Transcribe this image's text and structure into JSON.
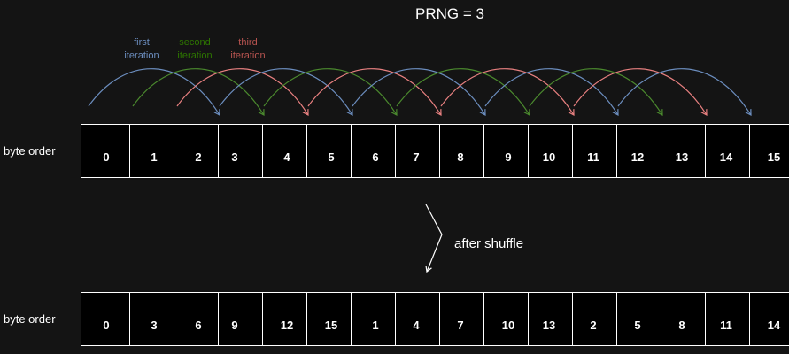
{
  "title": "PRNG = 3",
  "legend": [
    {
      "line1": "first",
      "line2": "iteration",
      "color": "#6c8ebf"
    },
    {
      "line1": "second",
      "line2": "iteration",
      "color": "#2d7600"
    },
    {
      "line1": "third",
      "line2": "iteration",
      "color": "#b85450"
    }
  ],
  "arc_colors": {
    "first": "#6c8ebf",
    "second": "#4b8a2e",
    "third": "#e88080"
  },
  "shuffle_label": "after shuffle",
  "rows": [
    {
      "label": "byte order",
      "cells": [
        "0",
        "1",
        "2",
        "3",
        "4",
        "5",
        "6",
        "7",
        "8",
        "9",
        "10",
        "11",
        "12",
        "13",
        "14",
        "15"
      ]
    },
    {
      "label": "byte order",
      "cells": [
        "0",
        "3",
        "6",
        "9",
        "12",
        "15",
        "1",
        "4",
        "7",
        "10",
        "13",
        "2",
        "5",
        "8",
        "11",
        "14"
      ]
    }
  ]
}
